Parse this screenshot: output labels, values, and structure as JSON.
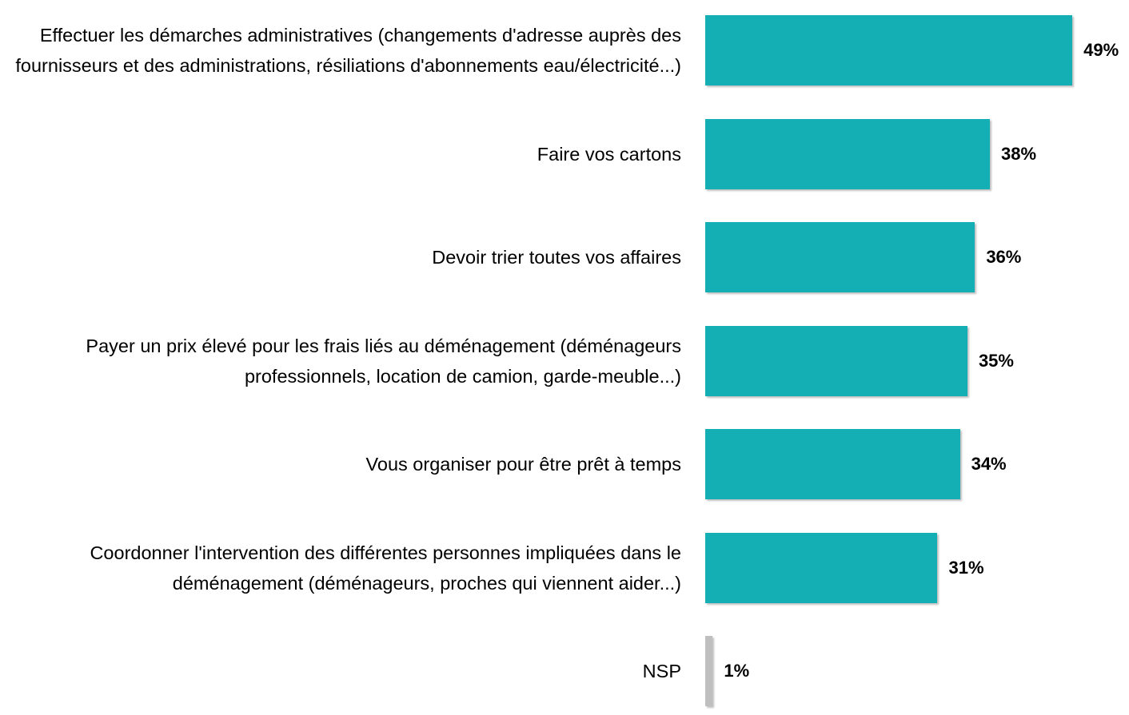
{
  "chart_data": {
    "type": "bar",
    "orientation": "horizontal",
    "categories": [
      "Effectuer les démarches administratives (changements d'adresse auprès des fournisseurs et des administrations, résiliations d'abonnements eau/électricité...)",
      "Faire vos cartons",
      "Devoir trier toutes vos affaires",
      "Payer un prix élevé pour les frais liés au déménagement (déménageurs professionnels, location de camion, garde-meuble...)",
      "Vous organiser pour être prêt à temps",
      "Coordonner l'intervention des différentes personnes impliquées dans le déménagement (déménageurs, proches qui viennent aider...)",
      "NSP"
    ],
    "values": [
      49,
      38,
      36,
      35,
      34,
      31,
      1
    ],
    "value_labels": [
      "49%",
      "38%",
      "36%",
      "35%",
      "34%",
      "31%",
      "1%"
    ],
    "colors": [
      "#13afb5",
      "#13afb5",
      "#13afb5",
      "#13afb5",
      "#13afb5",
      "#13afb5",
      "#bfbfbf"
    ]
  }
}
